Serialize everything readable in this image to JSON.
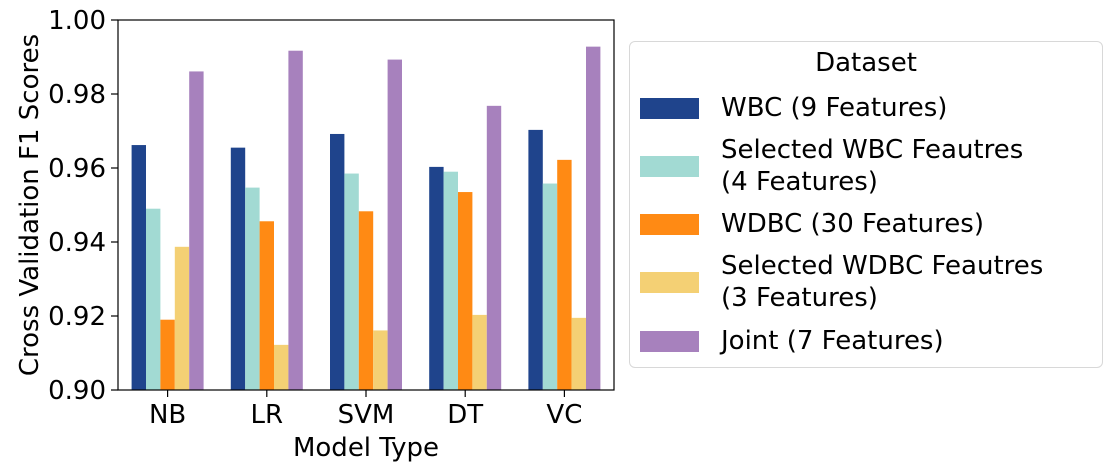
{
  "chart_data": {
    "type": "bar",
    "title": "",
    "xlabel": "Model Type",
    "ylabel": "Cross Validation F1 Scores",
    "ylim": [
      0.9,
      1.0
    ],
    "yticks": [
      "0.90",
      "0.92",
      "0.94",
      "0.96",
      "0.98",
      "1.00"
    ],
    "categories": [
      "NB",
      "LR",
      "SVM",
      "DT",
      "VC"
    ],
    "legend_title": "Dataset",
    "legend_position": "outside-right",
    "grid": false,
    "series": [
      {
        "name": "WBC (9 Features)",
        "color": "#1f448c",
        "values": [
          0.9662,
          0.9655,
          0.9692,
          0.9603,
          0.9703
        ]
      },
      {
        "name": "Selected WBC Feautres\n(4 Features)",
        "color": "#a2dad3",
        "values": [
          0.949,
          0.9547,
          0.9585,
          0.959,
          0.9558
        ]
      },
      {
        "name": "WDBC (30 Features)",
        "color": "#ff8a14",
        "values": [
          0.919,
          0.9456,
          0.9483,
          0.9535,
          0.9622
        ]
      },
      {
        "name": "Selected WDBC Feautres\n(3 Features)",
        "color": "#f4d074",
        "values": [
          0.9387,
          0.9122,
          0.9161,
          0.9203,
          0.9195
        ]
      },
      {
        "name": "Joint (7 Features)",
        "color": "#a781bd",
        "values": [
          0.9861,
          0.9917,
          0.9893,
          0.9768,
          0.9928
        ]
      }
    ]
  }
}
